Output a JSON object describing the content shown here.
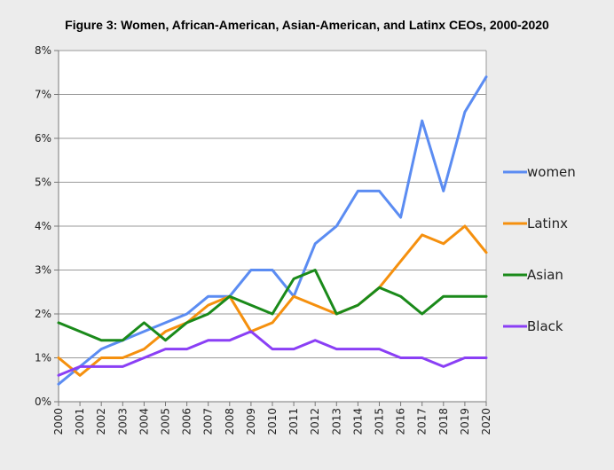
{
  "chart_data": {
    "type": "line",
    "title": "Figure 3: Women, African-American, Asian-American, and Latinx CEOs, 2000-2020",
    "xlabel": "",
    "ylabel": "",
    "categories": [
      "2000",
      "2001",
      "2002",
      "2003",
      "2004",
      "2005",
      "2006",
      "2007",
      "2008",
      "2009",
      "2010",
      "2011",
      "2012",
      "2013",
      "2014",
      "2015",
      "2016",
      "2017",
      "2018",
      "2019",
      "2020"
    ],
    "ylim": [
      0,
      8
    ],
    "yticks": [
      "0%",
      "1%",
      "2%",
      "3%",
      "4%",
      "5%",
      "6%",
      "7%",
      "8%"
    ],
    "grid": true,
    "legend_position": "right",
    "series": [
      {
        "name": "women",
        "color": "#5b8cf2",
        "values": [
          0.4,
          0.8,
          1.2,
          1.4,
          1.6,
          1.8,
          2.0,
          2.4,
          2.4,
          3.0,
          3.0,
          2.4,
          3.6,
          4.0,
          4.8,
          4.8,
          4.2,
          6.4,
          4.8,
          6.6,
          7.4
        ]
      },
      {
        "name": "Latinx",
        "color": "#f5900e",
        "values": [
          1.0,
          0.6,
          1.0,
          1.0,
          1.2,
          1.6,
          1.8,
          2.2,
          2.4,
          1.6,
          1.8,
          2.4,
          2.2,
          2.0,
          2.2,
          2.6,
          3.2,
          3.8,
          3.6,
          4.0,
          3.4
        ]
      },
      {
        "name": "Asian",
        "color": "#1a8a1a",
        "values": [
          1.8,
          1.6,
          1.4,
          1.4,
          1.8,
          1.4,
          1.8,
          2.0,
          2.4,
          2.2,
          2.0,
          2.8,
          3.0,
          2.0,
          2.2,
          2.6,
          2.4,
          2.0,
          2.4,
          2.4,
          2.4
        ]
      },
      {
        "name": "Black",
        "color": "#8a3ff5",
        "values": [
          0.6,
          0.8,
          0.8,
          0.8,
          1.0,
          1.2,
          1.2,
          1.4,
          1.4,
          1.6,
          1.2,
          1.2,
          1.4,
          1.2,
          1.2,
          1.2,
          1.0,
          1.0,
          0.8,
          1.0,
          1.0
        ]
      }
    ]
  }
}
